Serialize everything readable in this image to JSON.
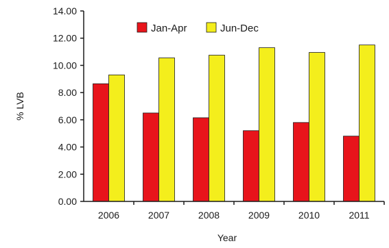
{
  "chart_data": {
    "type": "bar",
    "categories": [
      "2006",
      "2007",
      "2008",
      "2009",
      "2010",
      "2011"
    ],
    "series": [
      {
        "name": "Jan-Apr",
        "color": "#e8141b",
        "values": [
          8.65,
          6.5,
          6.15,
          5.2,
          5.8,
          4.8
        ]
      },
      {
        "name": "Jun-Dec",
        "color": "#f4ee1c",
        "values": [
          9.3,
          10.55,
          10.75,
          11.3,
          10.95,
          11.5
        ]
      }
    ],
    "xlabel": "Year",
    "ylabel": "% LVB",
    "ylim": [
      0,
      14
    ],
    "yticks": [
      "0.00",
      "2.00",
      "4.00",
      "6.00",
      "8.00",
      "10.00",
      "12.00",
      "14.00"
    ],
    "grid": false,
    "legend": "top-center"
  }
}
